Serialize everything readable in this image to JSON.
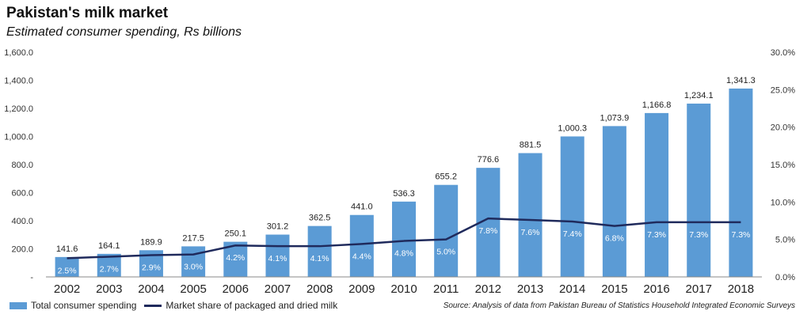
{
  "title": "Pakistan's milk market",
  "subtitle": "Estimated consumer spending, Rs billions",
  "source": "Source: Analysis of data from Pakistan Bureau of Statistics Household Integrated Economic Surveys",
  "colors": {
    "bars": "#5b9bd5",
    "line": "#1f2a5c",
    "grid": "#d0d0d0",
    "axis": "#888888"
  },
  "chart_data": {
    "type": "bar",
    "categories": [
      "2002",
      "2003",
      "2004",
      "2005",
      "2006",
      "2007",
      "2008",
      "2009",
      "2010",
      "2011",
      "2012",
      "2013",
      "2014",
      "2015",
      "2016",
      "2017",
      "2018"
    ],
    "series": [
      {
        "name": "Total consumer spending",
        "type": "bar",
        "axis": "left",
        "values": [
          141.6,
          164.1,
          189.9,
          217.5,
          250.1,
          301.2,
          362.5,
          441.0,
          536.3,
          655.2,
          776.6,
          881.5,
          1000.3,
          1073.9,
          1166.8,
          1234.1,
          1341.3
        ],
        "labels": [
          "141.6",
          "164.1",
          "189.9",
          "217.5",
          "250.1",
          "301.2",
          "362.5",
          "441.0",
          "536.3",
          "655.2",
          "776.6",
          "881.5",
          "1,000.3",
          "1,073.9",
          "1,166.8",
          "1,234.1",
          "1,341.3"
        ]
      },
      {
        "name": "Market share of packaged and dried milk",
        "type": "line",
        "axis": "right",
        "values": [
          2.5,
          2.7,
          2.9,
          3.0,
          4.2,
          4.1,
          4.1,
          4.4,
          4.8,
          5.0,
          7.8,
          7.6,
          7.4,
          6.8,
          7.3,
          7.3,
          7.3
        ],
        "labels": [
          "2.5%",
          "2.7%",
          "2.9%",
          "3.0%",
          "4.2%",
          "4.1%",
          "4.1%",
          "4.4%",
          "4.8%",
          "5.0%",
          "7.8%",
          "7.6%",
          "7.4%",
          "6.8%",
          "7.3%",
          "7.3%",
          "7.3%"
        ]
      }
    ],
    "y_left": {
      "ylim": [
        0,
        1600
      ],
      "ticks": [
        "-",
        "200.0",
        "400.0",
        "600.0",
        "800.0",
        "1,000.0",
        "1,200.0",
        "1,400.0",
        "1,600.0"
      ]
    },
    "y_right": {
      "ylim": [
        0,
        30
      ],
      "ticks": [
        "0.0%",
        "5.0%",
        "10.0%",
        "15.0%",
        "20.0%",
        "25.0%",
        "30.0%"
      ]
    },
    "grid": false,
    "legend_position": "bottom-left"
  }
}
